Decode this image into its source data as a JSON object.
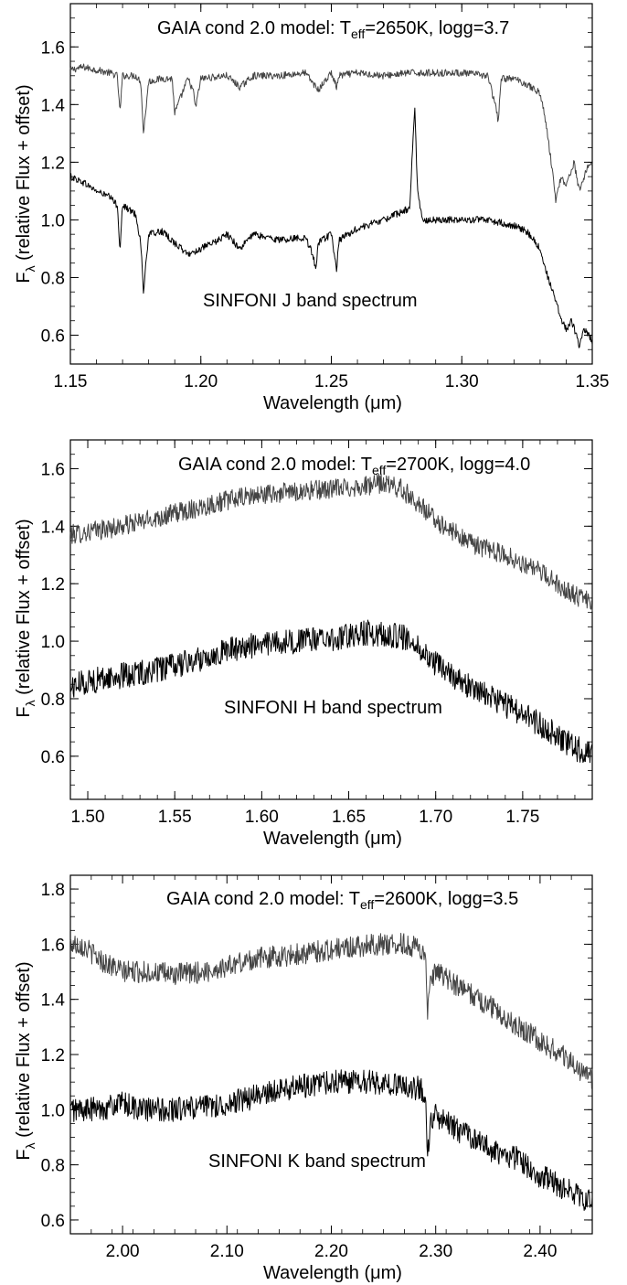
{
  "figure": {
    "panels": [
      {
        "id": "J",
        "model_label": "GAIA cond 2.0 model: T",
        "model_label_sub": "eff",
        "model_label_tail": "=2650K, logg=3.7",
        "obs_label": "SINFONI J band spectrum",
        "xlabel": "Wavelength (μm)",
        "ylabel": "F",
        "ylabel_sub": "λ",
        "ylabel_tail": " (relative Flux + offset)",
        "xlim": [
          1.15,
          1.35
        ],
        "ylim": [
          0.5,
          1.75
        ],
        "xticks": [
          "1.15",
          "1.20",
          "1.25",
          "1.30",
          "1.35"
        ],
        "xtick_values": [
          1.15,
          1.2,
          1.25,
          1.3,
          1.35
        ],
        "yticks": [
          "0.6",
          "0.8",
          "1.0",
          "1.2",
          "1.4",
          "1.6"
        ],
        "ytick_values": [
          0.6,
          0.8,
          1.0,
          1.2,
          1.4,
          1.6
        ]
      },
      {
        "id": "H",
        "model_label": "GAIA cond 2.0 model: T",
        "model_label_sub": "eff",
        "model_label_tail": "=2700K, logg=4.0",
        "obs_label": "SINFONI H band spectrum",
        "xlabel": "Wavelength (μm)",
        "ylabel": "F",
        "ylabel_sub": "λ",
        "ylabel_tail": " (relative Flux + offset)",
        "xlim": [
          1.49,
          1.79
        ],
        "ylim": [
          0.45,
          1.7
        ],
        "xticks": [
          "1.50",
          "1.55",
          "1.60",
          "1.65",
          "1.70",
          "1.75"
        ],
        "xtick_values": [
          1.5,
          1.55,
          1.6,
          1.65,
          1.7,
          1.75
        ],
        "yticks": [
          "0.6",
          "0.8",
          "1.0",
          "1.2",
          "1.4",
          "1.6"
        ],
        "ytick_values": [
          0.6,
          0.8,
          1.0,
          1.2,
          1.4,
          1.6
        ]
      },
      {
        "id": "K",
        "model_label": "GAIA cond 2.0 model: T",
        "model_label_sub": "eff",
        "model_label_tail": "=2600K, logg=3.5",
        "obs_label": "SINFONI K band spectrum",
        "xlabel": "Wavelength (μm)",
        "ylabel": "F",
        "ylabel_sub": "λ",
        "ylabel_tail": " (relative Flux + offset)",
        "xlim": [
          1.95,
          2.45
        ],
        "ylim": [
          0.55,
          1.85
        ],
        "xticks": [
          "2.00",
          "2.10",
          "2.20",
          "2.30",
          "2.40"
        ],
        "xtick_values": [
          2.0,
          2.1,
          2.2,
          2.3,
          2.4
        ],
        "yticks": [
          "0.6",
          "0.8",
          "1.0",
          "1.2",
          "1.4",
          "1.6",
          "1.8"
        ],
        "ytick_values": [
          0.6,
          0.8,
          1.0,
          1.2,
          1.4,
          1.6,
          1.8
        ]
      }
    ]
  },
  "chart_data": [
    {
      "type": "line",
      "title": "",
      "xlabel": "Wavelength (μm)",
      "ylabel": "Fλ (relative Flux + offset)",
      "xlim": [
        1.15,
        1.35
      ],
      "ylim": [
        0.5,
        1.75
      ],
      "series": [
        {
          "color": "#444444",
          "x": [
            1.15,
            1.155,
            1.16,
            1.165,
            1.168,
            1.169,
            1.17,
            1.175,
            1.177,
            1.178,
            1.18,
            1.185,
            1.189,
            1.19,
            1.195,
            1.197,
            1.198,
            1.2,
            1.21,
            1.215,
            1.22,
            1.23,
            1.24,
            1.245,
            1.25,
            1.252,
            1.253,
            1.26,
            1.27,
            1.28,
            1.29,
            1.3,
            1.31,
            1.313,
            1.314,
            1.315,
            1.32,
            1.325,
            1.33,
            1.332,
            1.334,
            1.336,
            1.338,
            1.34,
            1.343,
            1.345,
            1.348,
            1.35
          ],
          "y": [
            1.52,
            1.53,
            1.52,
            1.51,
            1.5,
            1.37,
            1.5,
            1.5,
            1.48,
            1.3,
            1.48,
            1.49,
            1.49,
            1.37,
            1.49,
            1.45,
            1.39,
            1.49,
            1.5,
            1.46,
            1.5,
            1.5,
            1.51,
            1.45,
            1.51,
            1.46,
            1.5,
            1.51,
            1.5,
            1.51,
            1.51,
            1.51,
            1.5,
            1.39,
            1.34,
            1.49,
            1.49,
            1.47,
            1.44,
            1.35,
            1.22,
            1.07,
            1.15,
            1.12,
            1.2,
            1.1,
            1.18,
            1.2
          ]
        },
        {
          "color": "#000000",
          "x": [
            1.15,
            1.155,
            1.16,
            1.165,
            1.168,
            1.169,
            1.17,
            1.175,
            1.177,
            1.178,
            1.18,
            1.185,
            1.19,
            1.195,
            1.2,
            1.205,
            1.21,
            1.215,
            1.22,
            1.23,
            1.24,
            1.243,
            1.244,
            1.245,
            1.25,
            1.252,
            1.253,
            1.26,
            1.27,
            1.275,
            1.28,
            1.281,
            1.282,
            1.283,
            1.285,
            1.29,
            1.3,
            1.31,
            1.32,
            1.325,
            1.33,
            1.333,
            1.336,
            1.338,
            1.34,
            1.342,
            1.344,
            1.345,
            1.347,
            1.35
          ],
          "y": [
            1.15,
            1.13,
            1.1,
            1.08,
            1.05,
            0.9,
            1.05,
            1.02,
            0.92,
            0.75,
            0.95,
            0.96,
            0.92,
            0.88,
            0.9,
            0.92,
            0.95,
            0.9,
            0.95,
            0.93,
            0.94,
            0.88,
            0.82,
            0.92,
            0.95,
            0.83,
            0.93,
            0.97,
            1.0,
            1.02,
            1.04,
            1.22,
            1.39,
            1.1,
            1.0,
            1.0,
            1.0,
            1.0,
            0.98,
            0.96,
            0.9,
            0.8,
            0.72,
            0.66,
            0.62,
            0.65,
            0.6,
            0.56,
            0.62,
            0.58
          ]
        }
      ]
    },
    {
      "type": "line",
      "title": "",
      "xlabel": "Wavelength (μm)",
      "ylabel": "Fλ (relative Flux + offset)",
      "xlim": [
        1.49,
        1.79
      ],
      "ylim": [
        0.45,
        1.7
      ],
      "series": [
        {
          "color": "#444444",
          "x": [
            1.49,
            1.5,
            1.52,
            1.54,
            1.56,
            1.58,
            1.6,
            1.62,
            1.64,
            1.66,
            1.67,
            1.68,
            1.69,
            1.7,
            1.72,
            1.74,
            1.76,
            1.78,
            1.79
          ],
          "y": [
            1.37,
            1.38,
            1.4,
            1.43,
            1.46,
            1.49,
            1.51,
            1.52,
            1.53,
            1.54,
            1.55,
            1.53,
            1.48,
            1.42,
            1.34,
            1.3,
            1.24,
            1.16,
            1.13
          ]
        },
        {
          "color": "#000000",
          "x": [
            1.49,
            1.5,
            1.52,
            1.54,
            1.56,
            1.58,
            1.6,
            1.62,
            1.64,
            1.66,
            1.68,
            1.69,
            1.7,
            1.72,
            1.74,
            1.76,
            1.78,
            1.79
          ],
          "y": [
            0.84,
            0.86,
            0.88,
            0.9,
            0.93,
            0.97,
            0.99,
            1.0,
            1.01,
            1.03,
            1.02,
            0.98,
            0.92,
            0.84,
            0.78,
            0.71,
            0.63,
            0.6
          ]
        }
      ]
    },
    {
      "type": "line",
      "title": "",
      "xlabel": "Wavelength (μm)",
      "ylabel": "Fλ (relative Flux + offset)",
      "xlim": [
        1.95,
        2.45
      ],
      "ylim": [
        0.55,
        1.85
      ],
      "series": [
        {
          "color": "#444444",
          "x": [
            1.95,
            1.96,
            1.98,
            2.0,
            2.02,
            2.05,
            2.08,
            2.1,
            2.13,
            2.16,
            2.2,
            2.24,
            2.27,
            2.29,
            2.292,
            2.295,
            2.3,
            2.32,
            2.35,
            2.38,
            2.4,
            2.42,
            2.45
          ],
          "y": [
            1.6,
            1.6,
            1.54,
            1.5,
            1.5,
            1.49,
            1.5,
            1.52,
            1.55,
            1.56,
            1.58,
            1.6,
            1.6,
            1.58,
            1.33,
            1.45,
            1.5,
            1.45,
            1.38,
            1.3,
            1.25,
            1.2,
            1.11
          ]
        },
        {
          "color": "#000000",
          "x": [
            1.95,
            1.97,
            2.0,
            2.02,
            2.05,
            2.08,
            2.1,
            2.13,
            2.16,
            2.2,
            2.24,
            2.27,
            2.29,
            2.292,
            2.295,
            2.3,
            2.32,
            2.35,
            2.38,
            2.4,
            2.42,
            2.45
          ],
          "y": [
            1.0,
            1.0,
            1.02,
            1.0,
            1.0,
            1.01,
            1.02,
            1.05,
            1.08,
            1.1,
            1.1,
            1.09,
            1.07,
            0.84,
            0.94,
            0.98,
            0.93,
            0.86,
            0.82,
            0.76,
            0.72,
            0.66
          ]
        }
      ]
    }
  ]
}
